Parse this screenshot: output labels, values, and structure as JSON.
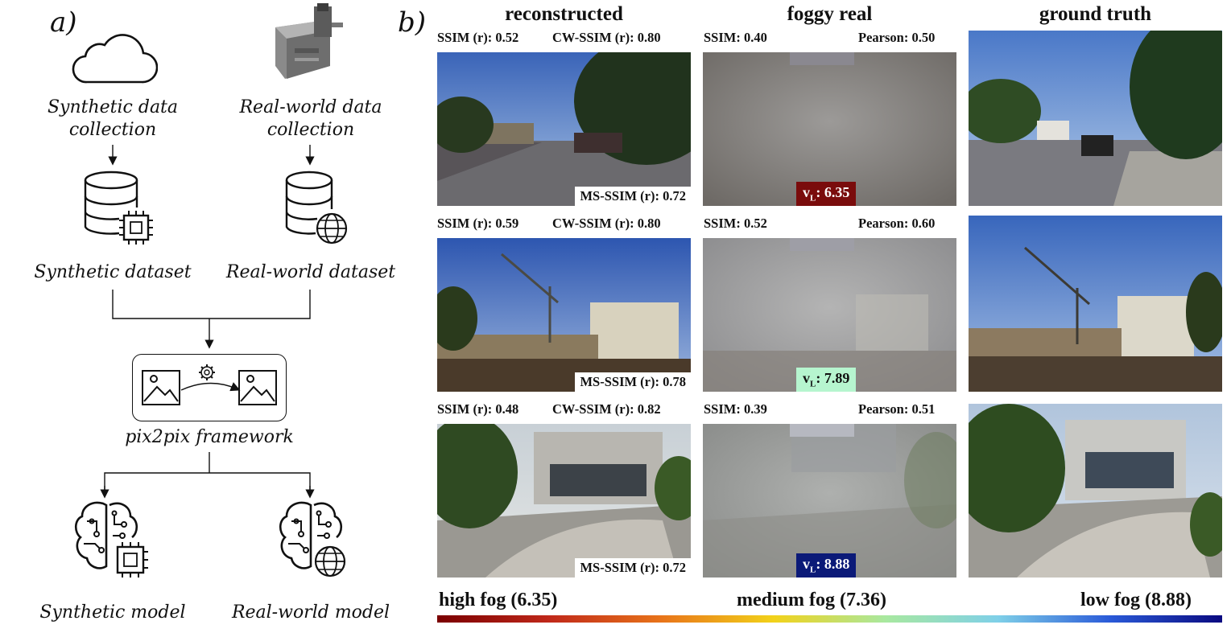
{
  "panel_a": {
    "letter": "a)",
    "synthetic_collection": [
      "Synthetic data",
      "collection"
    ],
    "real_collection": [
      "Real-world data",
      "collection"
    ],
    "synthetic_dataset": "Synthetic dataset",
    "real_dataset": "Real-world dataset",
    "framework": "pix2pix framework",
    "synthetic_model": "Synthetic model",
    "real_model": "Real-world model"
  },
  "panel_b": {
    "letter": "b)",
    "columns": [
      "reconstructed",
      "foggy real",
      "ground truth"
    ],
    "rows": [
      {
        "ssim_r": "SSIM (r): 0.52",
        "cwssim_r": "CW-SSIM (r): 0.80",
        "msssim_r": "MS-SSIM (r): 0.72",
        "ssim": "SSIM: 0.40",
        "pearson": "Pearson: 0.50",
        "vl_label": "v",
        "vl_sub": "L",
        "vl_value": ": 6.35",
        "vl_color": "#7a0c0c",
        "vl_text": "#ffffff"
      },
      {
        "ssim_r": "SSIM (r): 0.59",
        "cwssim_r": "CW-SSIM (r): 0.80",
        "msssim_r": "MS-SSIM (r): 0.78",
        "ssim": "SSIM: 0.52",
        "pearson": "Pearson: 0.60",
        "vl_label": "v",
        "vl_sub": "L",
        "vl_value": ": 7.89",
        "vl_color": "#b6f5cf",
        "vl_text": "#111111"
      },
      {
        "ssim_r": "SSIM (r): 0.48",
        "cwssim_r": "CW-SSIM (r): 0.82",
        "msssim_r": "MS-SSIM (r): 0.72",
        "ssim": "SSIM: 0.39",
        "pearson": "Pearson: 0.51",
        "vl_label": "v",
        "vl_sub": "L",
        "vl_value": ": 8.88",
        "vl_color": "#0b1a78",
        "vl_text": "#ffffff"
      }
    ],
    "scale": {
      "high": "high fog (6.35)",
      "medium": "medium fog (7.36)",
      "low": "low fog (8.88)"
    }
  },
  "colors": {
    "scale_stops": [
      "#7a0000",
      "#c0281a",
      "#e8741a",
      "#f2d21a",
      "#a8e8a0",
      "#7fd0e8",
      "#2a5ad8",
      "#0a0a80"
    ]
  }
}
